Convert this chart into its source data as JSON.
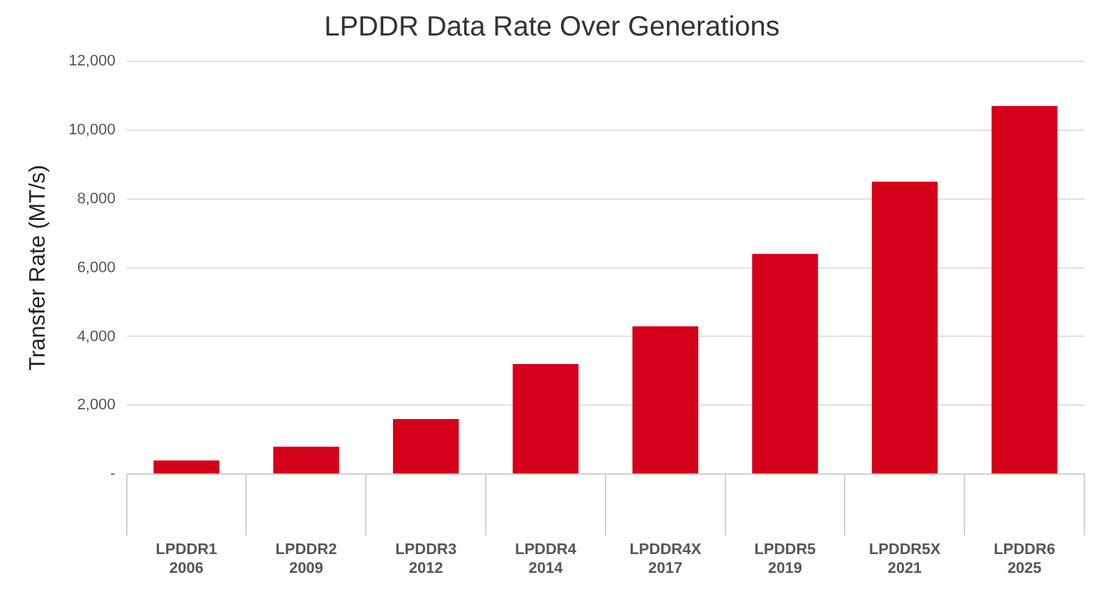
{
  "chart_data": {
    "type": "bar",
    "title": "LPDDR Data Rate Over Generations",
    "ylabel": "Transfer Rate (MT/s)",
    "categories": [
      "LPDDR1\n2006",
      "LPDDR2\n2009",
      "LPDDR3\n2012",
      "LPDDR4\n2014",
      "LPDDR4X\n2017",
      "LPDDR5\n2019",
      "LPDDR5X\n2021",
      "LPDDR6\n2025"
    ],
    "values": [
      400,
      800,
      1600,
      3200,
      4300,
      6400,
      8500,
      10700
    ],
    "color": "#d5001a",
    "ylim": [
      0,
      12000
    ],
    "yticks": [
      {
        "value": 0,
        "label": "-"
      },
      {
        "value": 2000,
        "label": "2,000"
      },
      {
        "value": 4000,
        "label": "4,000"
      },
      {
        "value": 6000,
        "label": "6,000"
      },
      {
        "value": 8000,
        "label": "8,000"
      },
      {
        "value": 10000,
        "label": "10,000"
      },
      {
        "value": 12000,
        "label": "12,000"
      }
    ],
    "grid": "y",
    "legend": false
  }
}
